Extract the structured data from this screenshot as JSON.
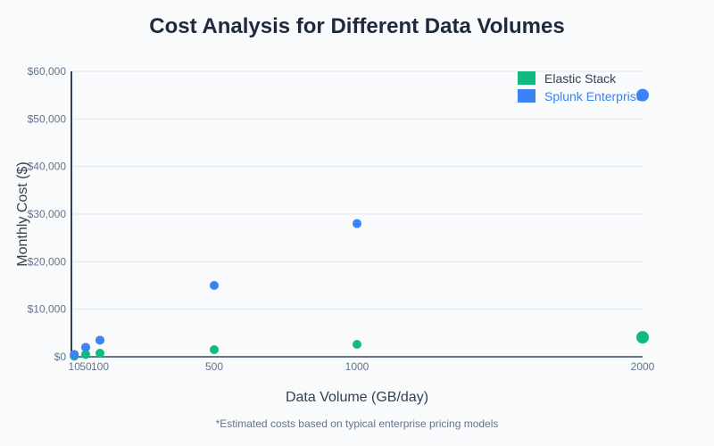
{
  "chart_data": {
    "type": "scatter",
    "title": "Cost Analysis for Different Data Volumes",
    "xlabel": "Data Volume (GB/day)",
    "ylabel": "Monthly Cost ($)",
    "xlim": [
      0,
      2000
    ],
    "ylim": [
      0,
      60000
    ],
    "x_ticks": [
      10,
      50,
      100,
      500,
      1000,
      2000
    ],
    "y_ticks": [
      0,
      10000,
      20000,
      30000,
      40000,
      50000,
      60000
    ],
    "y_tick_labels": [
      "$0",
      "$10,000",
      "$20,000",
      "$30,000",
      "$40,000",
      "$50,000",
      "$60,000"
    ],
    "grid": true,
    "legend_position": "top-right",
    "series": [
      {
        "name": "Elastic Stack",
        "color": "#10b981",
        "x": [
          10,
          50,
          100,
          500,
          1000,
          2000
        ],
        "y": [
          150,
          500,
          750,
          1500,
          2600,
          4100
        ]
      },
      {
        "name": "Splunk Enterprise",
        "color": "#3b82f6",
        "x": [
          10,
          50,
          100,
          500,
          1000,
          2000
        ],
        "y": [
          500,
          2000,
          3500,
          15000,
          28000,
          55000
        ]
      }
    ],
    "footnote": "*Estimated costs based on typical enterprise pricing models"
  }
}
